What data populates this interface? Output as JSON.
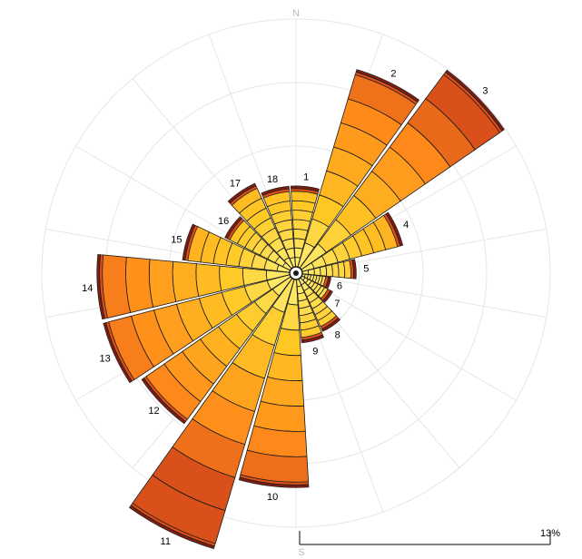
{
  "chart_data": {
    "type": "windrose",
    "title": "",
    "compass": {
      "north": "N",
      "south": "S"
    },
    "scale_label": "13%",
    "directions": 18,
    "sector_labels": [
      "1",
      "2",
      "3",
      "4",
      "5",
      "6",
      "7",
      "8",
      "9",
      "10",
      "11",
      "12",
      "13",
      "14",
      "15",
      "16",
      "17",
      "18"
    ],
    "sector_totals": [
      4.2,
      10.7,
      12.8,
      5.4,
      2.8,
      1.5,
      1.8,
      3.0,
      3.3,
      10.8,
      14.6,
      9.4,
      10.0,
      10.0,
      5.6,
      3.8,
      4.8,
      4.2
    ],
    "ring_count": 8,
    "colors": {
      "inner": "#fff27a",
      "mid": "#ffc824",
      "outer": "#ff8a1a",
      "outermost": "#d9501a",
      "rim": "#7a1d12",
      "grid": "#e6e6e6"
    }
  }
}
